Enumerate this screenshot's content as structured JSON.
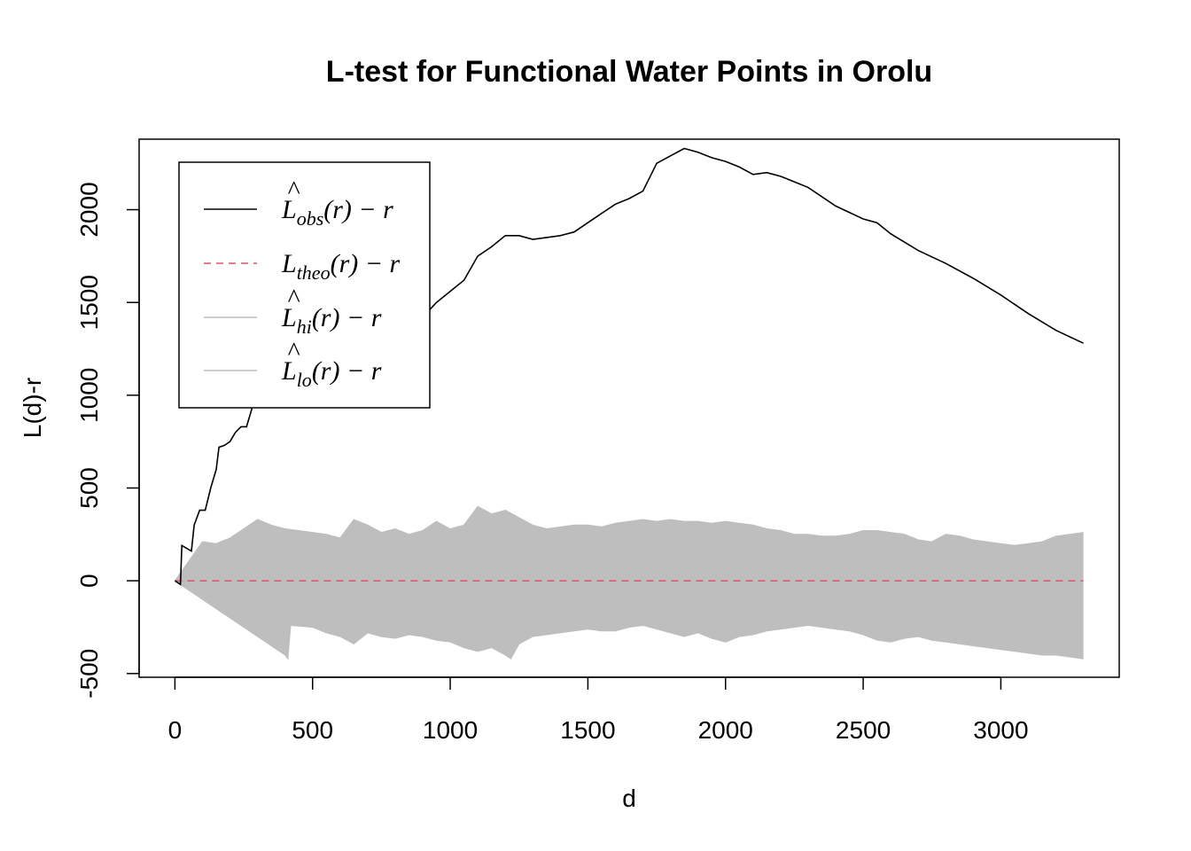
{
  "chart_data": {
    "type": "line",
    "title": "L-test for Functional Water Points in Orolu",
    "xlabel": "d",
    "ylabel": "L(d)-r",
    "xlim": [
      -130,
      3430
    ],
    "ylim": [
      -520,
      2380
    ],
    "xticks": [
      0,
      500,
      1000,
      1500,
      2000,
      2500,
      3000
    ],
    "yticks": [
      -500,
      0,
      500,
      1000,
      1500,
      2000
    ],
    "xtick_labels": [
      "0",
      "500",
      "1000",
      "1500",
      "2000",
      "2500",
      "3000"
    ],
    "ytick_labels": [
      "-500",
      "0",
      "500",
      "1000",
      "1500",
      "2000"
    ],
    "legend_position": "top-left",
    "legend": [
      {
        "key": "obs",
        "main": "L",
        "hat": "^",
        "sub": "obs",
        "tail": "(r) − r",
        "color": "#000000",
        "style": "solid"
      },
      {
        "key": "theo",
        "main": "L",
        "hat": "",
        "sub": "theo",
        "tail": "(r) − r",
        "color": "#DF536B",
        "style": "dashed"
      },
      {
        "key": "hi",
        "main": "L",
        "hat": "^",
        "sub": "hi",
        "tail": "(r) − r",
        "color": "#BEBEBE",
        "style": "solid"
      },
      {
        "key": "lo",
        "main": "L",
        "hat": "^",
        "sub": "lo",
        "tail": "(r) − r",
        "color": "#BEBEBE",
        "style": "solid"
      }
    ],
    "series": [
      {
        "name": "obs",
        "color": "#000000",
        "x": [
          0,
          20,
          25,
          60,
          70,
          90,
          110,
          130,
          150,
          160,
          180,
          200,
          220,
          240,
          260,
          280,
          300,
          330,
          360,
          400,
          440,
          480,
          520,
          560,
          600,
          650,
          700,
          730,
          760,
          800,
          850,
          900,
          950,
          1000,
          1050,
          1100,
          1150,
          1200,
          1250,
          1300,
          1350,
          1400,
          1450,
          1500,
          1550,
          1600,
          1650,
          1700,
          1750,
          1800,
          1850,
          1900,
          1950,
          2000,
          2050,
          2100,
          2150,
          2200,
          2250,
          2300,
          2400,
          2500,
          2550,
          2600,
          2700,
          2800,
          2900,
          3000,
          3100,
          3200,
          3300
        ],
        "y": [
          0,
          -20,
          190,
          160,
          300,
          380,
          380,
          500,
          600,
          720,
          730,
          750,
          800,
          830,
          830,
          930,
          960,
          980,
          1000,
          1030,
          1070,
          1080,
          1100,
          1080,
          1100,
          1150,
          1150,
          1230,
          1280,
          1340,
          1400,
          1420,
          1500,
          1560,
          1620,
          1750,
          1800,
          1860,
          1860,
          1840,
          1850,
          1860,
          1880,
          1930,
          1980,
          2030,
          2060,
          2100,
          2250,
          2290,
          2330,
          2310,
          2280,
          2260,
          2230,
          2190,
          2200,
          2180,
          2150,
          2120,
          2020,
          1950,
          1930,
          1870,
          1780,
          1710,
          1630,
          1540,
          1440,
          1350,
          1280
        ]
      },
      {
        "name": "theo",
        "color": "#DF536B",
        "x": [
          0,
          3300
        ],
        "y": [
          0,
          0
        ]
      },
      {
        "name": "hi",
        "color": "#BEBEBE",
        "x": [
          0,
          100,
          150,
          200,
          250,
          300,
          350,
          400,
          450,
          500,
          550,
          600,
          650,
          700,
          750,
          800,
          850,
          900,
          950,
          1000,
          1050,
          1100,
          1150,
          1200,
          1250,
          1300,
          1350,
          1400,
          1450,
          1500,
          1550,
          1600,
          1650,
          1700,
          1750,
          1800,
          1850,
          1900,
          1950,
          2000,
          2050,
          2100,
          2150,
          2200,
          2250,
          2300,
          2350,
          2400,
          2450,
          2500,
          2550,
          2600,
          2650,
          2700,
          2750,
          2800,
          2850,
          2900,
          2950,
          3000,
          3050,
          3100,
          3150,
          3200,
          3250,
          3300
        ],
        "y": [
          0,
          210,
          200,
          230,
          280,
          330,
          300,
          280,
          270,
          260,
          250,
          230,
          330,
          300,
          260,
          280,
          250,
          270,
          320,
          280,
          300,
          400,
          360,
          380,
          340,
          300,
          280,
          290,
          300,
          300,
          290,
          310,
          320,
          330,
          320,
          330,
          320,
          320,
          310,
          320,
          310,
          300,
          280,
          270,
          250,
          250,
          240,
          240,
          250,
          270,
          270,
          260,
          250,
          220,
          210,
          250,
          240,
          220,
          210,
          200,
          190,
          200,
          210,
          240,
          250,
          260
        ]
      },
      {
        "name": "lo",
        "color": "#BEBEBE",
        "x": [
          0,
          100,
          200,
          300,
          400,
          410,
          420,
          500,
          550,
          600,
          650,
          700,
          750,
          800,
          850,
          900,
          950,
          1000,
          1050,
          1100,
          1150,
          1200,
          1220,
          1250,
          1300,
          1350,
          1400,
          1450,
          1500,
          1550,
          1600,
          1650,
          1700,
          1750,
          1800,
          1850,
          1900,
          1950,
          2000,
          2050,
          2100,
          2150,
          2200,
          2250,
          2300,
          2350,
          2400,
          2450,
          2500,
          2550,
          2600,
          2650,
          2700,
          2750,
          2800,
          2850,
          2900,
          2950,
          3000,
          3050,
          3100,
          3150,
          3200,
          3250,
          3300
        ],
        "y": [
          0,
          -100,
          -200,
          -300,
          -400,
          -420,
          -240,
          -250,
          -280,
          -300,
          -340,
          -280,
          -300,
          -310,
          -290,
          -300,
          -320,
          -330,
          -360,
          -380,
          -360,
          -400,
          -420,
          -340,
          -300,
          -290,
          -280,
          -270,
          -260,
          -270,
          -270,
          -250,
          -240,
          -260,
          -280,
          -300,
          -280,
          -310,
          -330,
          -300,
          -290,
          -270,
          -260,
          -250,
          -240,
          -250,
          -260,
          -270,
          -290,
          -320,
          -330,
          -310,
          -300,
          -320,
          -330,
          -340,
          -350,
          -360,
          -370,
          -380,
          -390,
          -400,
          -400,
          -410,
          -420
        ]
      }
    ]
  }
}
